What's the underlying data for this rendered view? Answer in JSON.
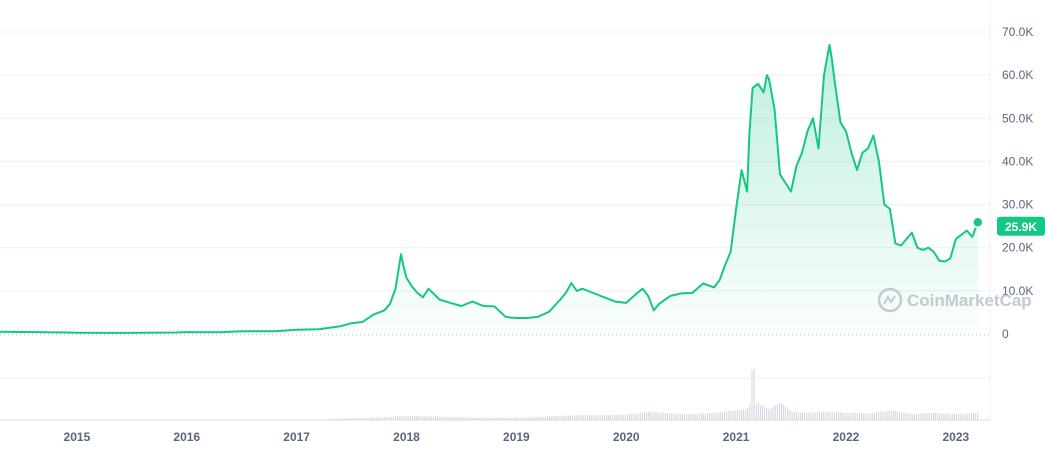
{
  "chart_data": {
    "type": "area",
    "title": "",
    "xlabel": "",
    "ylabel": "",
    "watermark": "CoinMarketCap",
    "line_color": "#16c784",
    "fill_color": "#16c784",
    "ylim": [
      0,
      70000
    ],
    "y_ticks": [
      {
        "value": 0,
        "label": "0"
      },
      {
        "value": 10000,
        "label": "10.0K"
      },
      {
        "value": 20000,
        "label": "20.0K"
      },
      {
        "value": 30000,
        "label": "30.0K"
      },
      {
        "value": 40000,
        "label": "40.0K"
      },
      {
        "value": 50000,
        "label": "50.0K"
      },
      {
        "value": 60000,
        "label": "60.0K"
      },
      {
        "value": 70000,
        "label": "70.0K"
      }
    ],
    "xlim": [
      2014.3,
      2023.22
    ],
    "x_ticks": [
      {
        "value": 2015,
        "label": "2015"
      },
      {
        "value": 2016,
        "label": "2016"
      },
      {
        "value": 2017,
        "label": "2017"
      },
      {
        "value": 2018,
        "label": "2018"
      },
      {
        "value": 2019,
        "label": "2019"
      },
      {
        "value": 2020,
        "label": "2020"
      },
      {
        "value": 2021,
        "label": "2021"
      },
      {
        "value": 2022,
        "label": "2022"
      },
      {
        "value": 2023,
        "label": "2023"
      }
    ],
    "last_value_label": "25.9K",
    "series": [
      {
        "x": [
          2014.3,
          2014.6,
          2014.9,
          2015.0,
          2015.3,
          2015.6,
          2015.9,
          2016.0,
          2016.3,
          2016.5,
          2016.8,
          2017.0,
          2017.2,
          2017.4,
          2017.5,
          2017.6,
          2017.7,
          2017.8,
          2017.85,
          2017.9,
          2017.95,
          2017.97,
          2018.0,
          2018.05,
          2018.1,
          2018.15,
          2018.2,
          2018.3,
          2018.4,
          2018.5,
          2018.6,
          2018.7,
          2018.8,
          2018.9,
          2018.95,
          2019.0,
          2019.1,
          2019.2,
          2019.3,
          2019.4,
          2019.45,
          2019.5,
          2019.55,
          2019.6,
          2019.7,
          2019.8,
          2019.9,
          2020.0,
          2020.1,
          2020.15,
          2020.2,
          2020.25,
          2020.3,
          2020.4,
          2020.5,
          2020.6,
          2020.7,
          2020.8,
          2020.85,
          2020.9,
          2020.95,
          2021.0,
          2021.05,
          2021.1,
          2021.12,
          2021.15,
          2021.2,
          2021.25,
          2021.28,
          2021.3,
          2021.35,
          2021.4,
          2021.45,
          2021.5,
          2021.55,
          2021.6,
          2021.65,
          2021.7,
          2021.75,
          2021.8,
          2021.85,
          2021.87,
          2021.9,
          2021.95,
          2022.0,
          2022.05,
          2022.1,
          2022.15,
          2022.2,
          2022.25,
          2022.3,
          2022.35,
          2022.4,
          2022.45,
          2022.5,
          2022.55,
          2022.6,
          2022.65,
          2022.7,
          2022.75,
          2022.8,
          2022.85,
          2022.9,
          2022.95,
          2023.0,
          2023.05,
          2023.1,
          2023.15,
          2023.2
        ],
        "y": [
          500,
          450,
          350,
          300,
          250,
          270,
          350,
          430,
          420,
          650,
          650,
          1000,
          1100,
          1800,
          2500,
          2800,
          4500,
          5500,
          7000,
          10500,
          18500,
          16000,
          13000,
          11000,
          9500,
          8500,
          10500,
          8000,
          7200,
          6500,
          7500,
          6500,
          6400,
          4000,
          3800,
          3700,
          3700,
          4000,
          5200,
          8000,
          9500,
          11800,
          10000,
          10500,
          9500,
          8500,
          7500,
          7200,
          9500,
          10500,
          8800,
          5500,
          7000,
          8800,
          9400,
          9500,
          11700,
          10800,
          12500,
          16000,
          19000,
          29000,
          38000,
          33000,
          46000,
          57000,
          58000,
          56000,
          60000,
          59000,
          52000,
          37000,
          35000,
          33000,
          39000,
          42000,
          47000,
          50000,
          43000,
          60000,
          67000,
          64000,
          58000,
          49000,
          47000,
          42000,
          38000,
          42000,
          43000,
          46000,
          40000,
          30000,
          29000,
          21000,
          20500,
          22000,
          23500,
          20000,
          19500,
          20000,
          19000,
          17000,
          16800,
          17500,
          22000,
          23000,
          24000,
          22500,
          25900
        ]
      }
    ],
    "volume": {
      "x": [
        2017.3,
        2017.5,
        2017.7,
        2017.9,
        2018.0,
        2018.2,
        2018.4,
        2018.6,
        2018.8,
        2019.0,
        2019.2,
        2019.4,
        2019.6,
        2019.8,
        2020.0,
        2020.2,
        2020.4,
        2020.6,
        2020.8,
        2021.0,
        2021.1,
        2021.15,
        2021.2,
        2021.3,
        2021.4,
        2021.5,
        2021.6,
        2021.8,
        2022.0,
        2022.2,
        2022.4,
        2022.6,
        2022.8,
        2023.0,
        2023.2
      ],
      "y": [
        2,
        3,
        4,
        6,
        7,
        6,
        5,
        4,
        4,
        4,
        5,
        7,
        8,
        8,
        9,
        14,
        11,
        10,
        12,
        16,
        18,
        100,
        26,
        18,
        30,
        14,
        12,
        14,
        12,
        11,
        16,
        10,
        12,
        10,
        12
      ]
    }
  }
}
